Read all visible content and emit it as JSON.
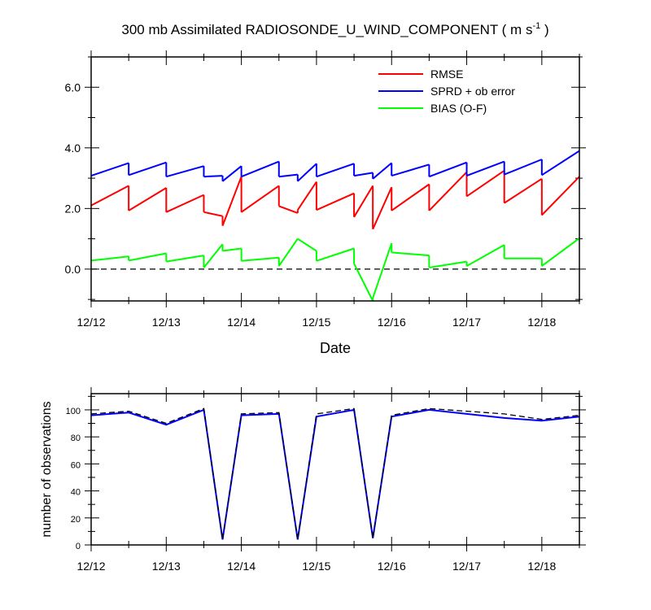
{
  "chart_data": [
    {
      "type": "line",
      "title": "300 mb Assimilated RADIOSONDE_U_WIND_COMPONENT ( m s",
      "title_sup": "-1",
      "title_end": " )",
      "xlabel": "Date",
      "ylabel": "",
      "xlim": [
        0,
        6.5
      ],
      "ylim": [
        -1.05,
        7.0
      ],
      "x_ticks": [
        0,
        1,
        2,
        3,
        4,
        5,
        6
      ],
      "x_tick_labels": [
        "12/12",
        "12/13",
        "12/14",
        "12/15",
        "12/16",
        "12/17",
        "12/18"
      ],
      "y_ticks": [
        0,
        2,
        4,
        6
      ],
      "y_tick_labels": [
        "0.0",
        "2.0",
        "4.0",
        "6.0"
      ],
      "zero_line": 0,
      "legend_position": "top-right",
      "series": [
        {
          "name": "RMSE",
          "color": "#ff0000",
          "segments": [
            [
              [
                0,
                2.1
              ],
              [
                0.5,
                2.75
              ]
            ],
            [
              [
                0.5,
                1.93
              ],
              [
                1.0,
                2.68
              ]
            ],
            [
              [
                1.0,
                1.88
              ],
              [
                1.5,
                2.45
              ]
            ],
            [
              [
                1.5,
                1.88
              ],
              [
                1.75,
                1.75
              ]
            ],
            [
              [
                1.75,
                1.43
              ],
              [
                2.0,
                3.05
              ]
            ],
            [
              [
                2.0,
                1.88
              ],
              [
                2.5,
                2.75
              ]
            ],
            [
              [
                2.5,
                2.08
              ],
              [
                2.75,
                1.85
              ]
            ],
            [
              [
                2.75,
                1.95
              ],
              [
                3.0,
                2.88
              ]
            ],
            [
              [
                3.0,
                1.95
              ],
              [
                3.5,
                2.5
              ]
            ],
            [
              [
                3.5,
                1.72
              ],
              [
                3.75,
                2.75
              ]
            ],
            [
              [
                3.75,
                1.32
              ],
              [
                4.0,
                2.7
              ]
            ],
            [
              [
                4.0,
                1.93
              ],
              [
                4.5,
                2.8
              ]
            ],
            [
              [
                4.5,
                1.93
              ],
              [
                5.0,
                3.2
              ]
            ],
            [
              [
                5.0,
                2.4
              ],
              [
                5.5,
                3.25
              ]
            ],
            [
              [
                5.5,
                2.18
              ],
              [
                6.0,
                2.98
              ]
            ],
            [
              [
                6.0,
                1.78
              ],
              [
                6.5,
                3.05
              ]
            ]
          ]
        },
        {
          "name": "SPRD + ob error",
          "color": "#0000ff",
          "segments": [
            [
              [
                0,
                3.08
              ],
              [
                0.5,
                3.5
              ]
            ],
            [
              [
                0.5,
                3.1
              ],
              [
                1.0,
                3.52
              ]
            ],
            [
              [
                1.0,
                3.05
              ],
              [
                1.5,
                3.4
              ]
            ],
            [
              [
                1.5,
                3.05
              ],
              [
                1.75,
                3.08
              ]
            ],
            [
              [
                1.75,
                2.9
              ],
              [
                2.0,
                3.4
              ]
            ],
            [
              [
                2.0,
                3.05
              ],
              [
                2.5,
                3.55
              ]
            ],
            [
              [
                2.5,
                3.05
              ],
              [
                2.75,
                3.12
              ]
            ],
            [
              [
                2.75,
                2.9
              ],
              [
                3.0,
                3.48
              ]
            ],
            [
              [
                3.0,
                3.05
              ],
              [
                3.5,
                3.48
              ]
            ],
            [
              [
                3.5,
                3.08
              ],
              [
                3.75,
                3.18
              ]
            ],
            [
              [
                3.75,
                2.98
              ],
              [
                4.0,
                3.5
              ]
            ],
            [
              [
                4.0,
                3.08
              ],
              [
                4.5,
                3.45
              ]
            ],
            [
              [
                4.5,
                3.05
              ],
              [
                5.0,
                3.52
              ]
            ],
            [
              [
                5.0,
                3.08
              ],
              [
                5.5,
                3.55
              ]
            ],
            [
              [
                5.5,
                3.12
              ],
              [
                6.0,
                3.62
              ]
            ],
            [
              [
                6.0,
                3.1
              ],
              [
                6.5,
                3.9
              ]
            ]
          ]
        },
        {
          "name": "BIAS (O-F)",
          "color": "#00ff00",
          "segments": [
            [
              [
                0,
                0.28
              ],
              [
                0.5,
                0.42
              ]
            ],
            [
              [
                0.5,
                0.28
              ],
              [
                1.0,
                0.52
              ]
            ],
            [
              [
                1.0,
                0.25
              ],
              [
                1.5,
                0.45
              ]
            ],
            [
              [
                1.5,
                0.05
              ],
              [
                1.75,
                0.82
              ]
            ],
            [
              [
                1.75,
                0.6
              ],
              [
                2.0,
                0.68
              ]
            ],
            [
              [
                2.0,
                0.27
              ],
              [
                2.5,
                0.38
              ]
            ],
            [
              [
                2.5,
                0.1
              ],
              [
                2.75,
                1.0
              ]
            ],
            [
              [
                2.75,
                1.0
              ],
              [
                3.0,
                0.6
              ]
            ],
            [
              [
                3.0,
                0.27
              ],
              [
                3.5,
                0.68
              ]
            ],
            [
              [
                3.5,
                0.18
              ],
              [
                3.75,
                -1.05
              ]
            ],
            [
              [
                3.75,
                -0.95
              ],
              [
                4.0,
                0.85
              ]
            ],
            [
              [
                4.0,
                0.55
              ],
              [
                4.5,
                0.45
              ]
            ],
            [
              [
                4.5,
                0.05
              ],
              [
                5.0,
                0.25
              ]
            ],
            [
              [
                5.0,
                0.1
              ],
              [
                5.5,
                0.8
              ]
            ],
            [
              [
                5.5,
                0.35
              ],
              [
                6.0,
                0.35
              ]
            ],
            [
              [
                6.0,
                0.1
              ],
              [
                6.5,
                1.02
              ]
            ]
          ]
        }
      ]
    },
    {
      "type": "line",
      "title": "",
      "xlabel": "",
      "ylabel": "number of observations",
      "xlim": [
        0,
        6.5
      ],
      "ylim": [
        0,
        112
      ],
      "x_ticks": [
        0,
        1,
        2,
        3,
        4,
        5,
        6
      ],
      "x_tick_labels": [
        "12/12",
        "12/13",
        "12/14",
        "12/15",
        "12/16",
        "12/17",
        "12/18"
      ],
      "y_ticks": [
        0,
        20,
        40,
        60,
        80,
        100
      ],
      "y_tick_labels": [
        "0",
        "20",
        "40",
        "60",
        "80",
        "100"
      ],
      "x": [
        0,
        0.5,
        1.0,
        1.5,
        1.75,
        2.0,
        2.5,
        2.75,
        3.0,
        3.5,
        3.75,
        4.0,
        4.5,
        5.0,
        5.5,
        6.0,
        6.5
      ],
      "series": [
        {
          "color": "#0000ff",
          "style": "solid",
          "values": [
            96,
            98,
            89,
            100,
            4,
            96,
            97,
            4,
            95,
            100,
            5,
            95,
            100,
            97,
            94,
            92,
            95
          ]
        },
        {
          "color": "#000000",
          "style": "dashed",
          "values": [
            97,
            99,
            90,
            101,
            4,
            97,
            98,
            4,
            97,
            101,
            5,
            96,
            101,
            99,
            97,
            93,
            96
          ]
        }
      ]
    }
  ]
}
